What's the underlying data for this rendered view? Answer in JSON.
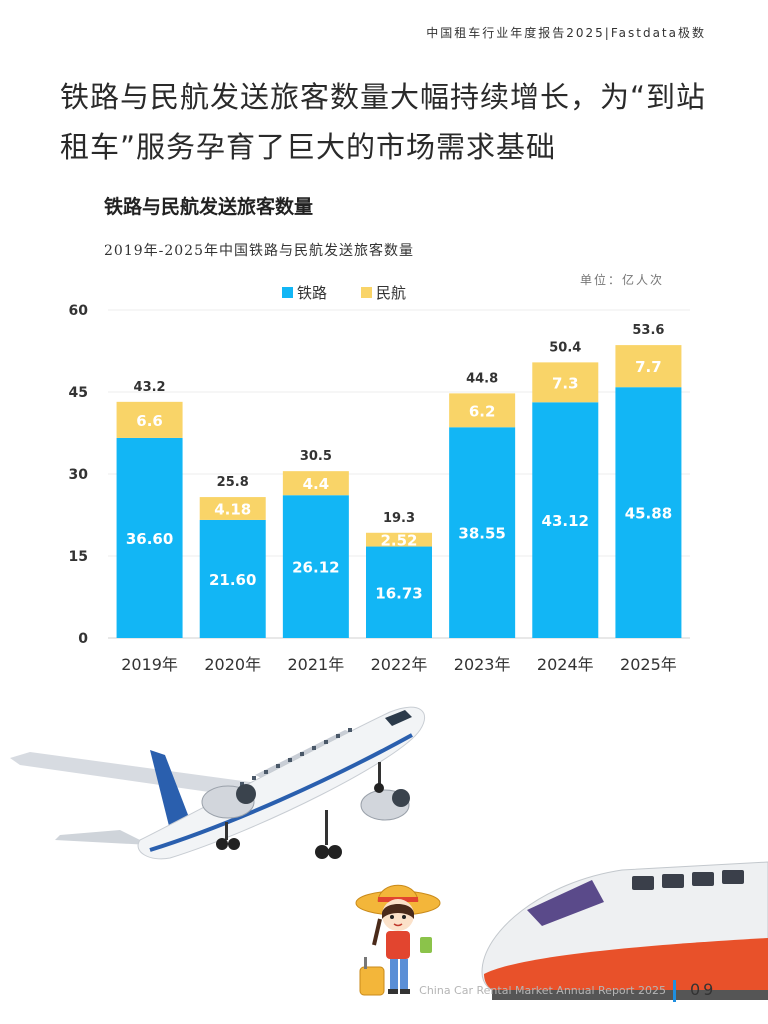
{
  "header": {
    "report_title": "中国租车行业年度报告2025|Fastdata极数"
  },
  "headline": "铁路与民航发送旅客数量大幅持续增长，为“到站租车”服务孕育了巨大的市场需求基础",
  "chart_data": {
    "type": "bar",
    "stacked": true,
    "title": "铁路与民航发送旅客数量",
    "subtitle": "2019年-2025年中国铁路与民航发送旅客数量",
    "unit": "单位：亿人次",
    "categories": [
      "2019年",
      "2020年",
      "2021年",
      "2022年",
      "2023年",
      "2024年",
      "2025年"
    ],
    "series": [
      {
        "name": "铁路",
        "color": "#12b6f5",
        "values": [
          36.6,
          21.6,
          26.12,
          16.73,
          38.55,
          43.12,
          45.88
        ],
        "labels": [
          "36.60",
          "21.60",
          "26.12",
          "16.73",
          "38.55",
          "43.12",
          "45.88"
        ]
      },
      {
        "name": "民航",
        "color": "#f9d468",
        "values": [
          6.6,
          4.18,
          4.4,
          2.52,
          6.2,
          7.3,
          7.7
        ],
        "labels": [
          "6.6",
          "4.18",
          "4.4",
          "2.52",
          "6.2",
          "7.3",
          "7.7"
        ]
      }
    ],
    "totals": [
      "43.2",
      "25.8",
      "30.5",
      "19.3",
      "44.8",
      "50.4",
      "53.6"
    ],
    "ylim": [
      0,
      60
    ],
    "yticks": [
      0,
      15,
      30,
      45,
      60
    ],
    "grid": true,
    "legend_position": "top-center"
  },
  "footer": {
    "report_name": "China Car Rental Market Annual Report 2025",
    "page_number": "09"
  }
}
